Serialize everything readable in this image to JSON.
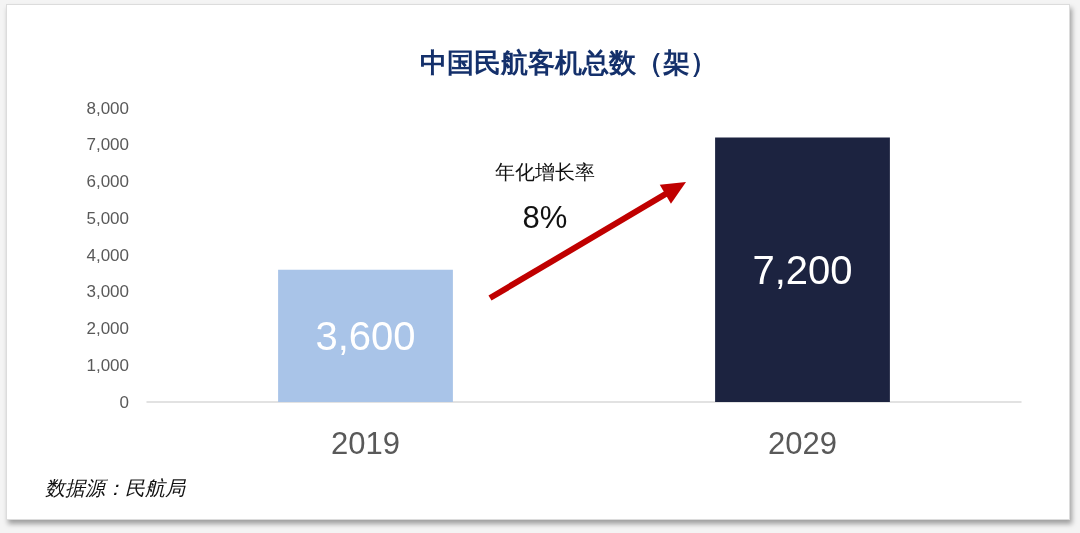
{
  "chart_data": {
    "type": "bar",
    "title": "中国民航客机总数（架）",
    "categories": [
      "2019",
      "2029"
    ],
    "values": [
      3600,
      7200
    ],
    "colors": [
      "#a9c4e8",
      "#1c2340"
    ],
    "value_labels": [
      "3,600",
      "7,200"
    ],
    "ylim": [
      0,
      8000
    ],
    "yticks": [
      0,
      {
        "value": 1000,
        "label": "1,000"
      },
      {
        "value": 2000,
        "label": "2,000"
      },
      {
        "value": 3000,
        "label": "3,000"
      },
      {
        "value": 4000,
        "label": "4,000"
      },
      {
        "value": 5000,
        "label": "5,000"
      },
      {
        "value": 6000,
        "label": "6,000"
      },
      {
        "value": 7000,
        "label": "7,000"
      },
      {
        "value": 8000,
        "label": "8,000"
      }
    ],
    "annotations": [
      "年化增长率\n8%",
      "数据源：民航局"
    ]
  }
}
